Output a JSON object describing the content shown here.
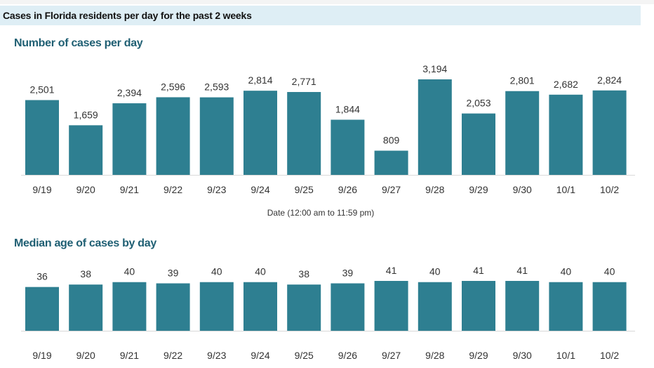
{
  "banner": {
    "title": "Cases in Florida residents per day for the past 2 weeks"
  },
  "colors": {
    "bar": "#2e7f91",
    "banner_bg": "#deeef5",
    "title": "#1f5f73",
    "text": "#333333"
  },
  "chart_data": [
    {
      "type": "bar",
      "title": "Number of cases per day",
      "xlabel": "Date (12:00 am to 11:59 pm)",
      "ylabel": "",
      "ylim": [
        0,
        3500
      ],
      "categories": [
        "9/19",
        "9/20",
        "9/21",
        "9/22",
        "9/23",
        "9/24",
        "9/25",
        "9/26",
        "9/27",
        "9/28",
        "9/29",
        "9/30",
        "10/1",
        "10/2"
      ],
      "values": [
        2501,
        1659,
        2394,
        2596,
        2593,
        2814,
        2771,
        1844,
        809,
        3194,
        2053,
        2801,
        2682,
        2824
      ],
      "data_labels": [
        "2,501",
        "1,659",
        "2,394",
        "2,596",
        "2,593",
        "2,814",
        "2,771",
        "1,844",
        "809",
        "3,194",
        "2,053",
        "2,801",
        "2,682",
        "2,824"
      ]
    },
    {
      "type": "bar",
      "title": "Median age of cases by day",
      "xlabel": "",
      "ylabel": "",
      "ylim": [
        0,
        48
      ],
      "categories": [
        "9/19",
        "9/20",
        "9/21",
        "9/22",
        "9/23",
        "9/24",
        "9/25",
        "9/26",
        "9/27",
        "9/28",
        "9/29",
        "9/30",
        "10/1",
        "10/2"
      ],
      "values": [
        36,
        38,
        40,
        39,
        40,
        40,
        38,
        39,
        41,
        40,
        41,
        41,
        40,
        40
      ],
      "data_labels": [
        "36",
        "38",
        "40",
        "39",
        "40",
        "40",
        "38",
        "39",
        "41",
        "40",
        "41",
        "41",
        "40",
        "40"
      ]
    }
  ]
}
